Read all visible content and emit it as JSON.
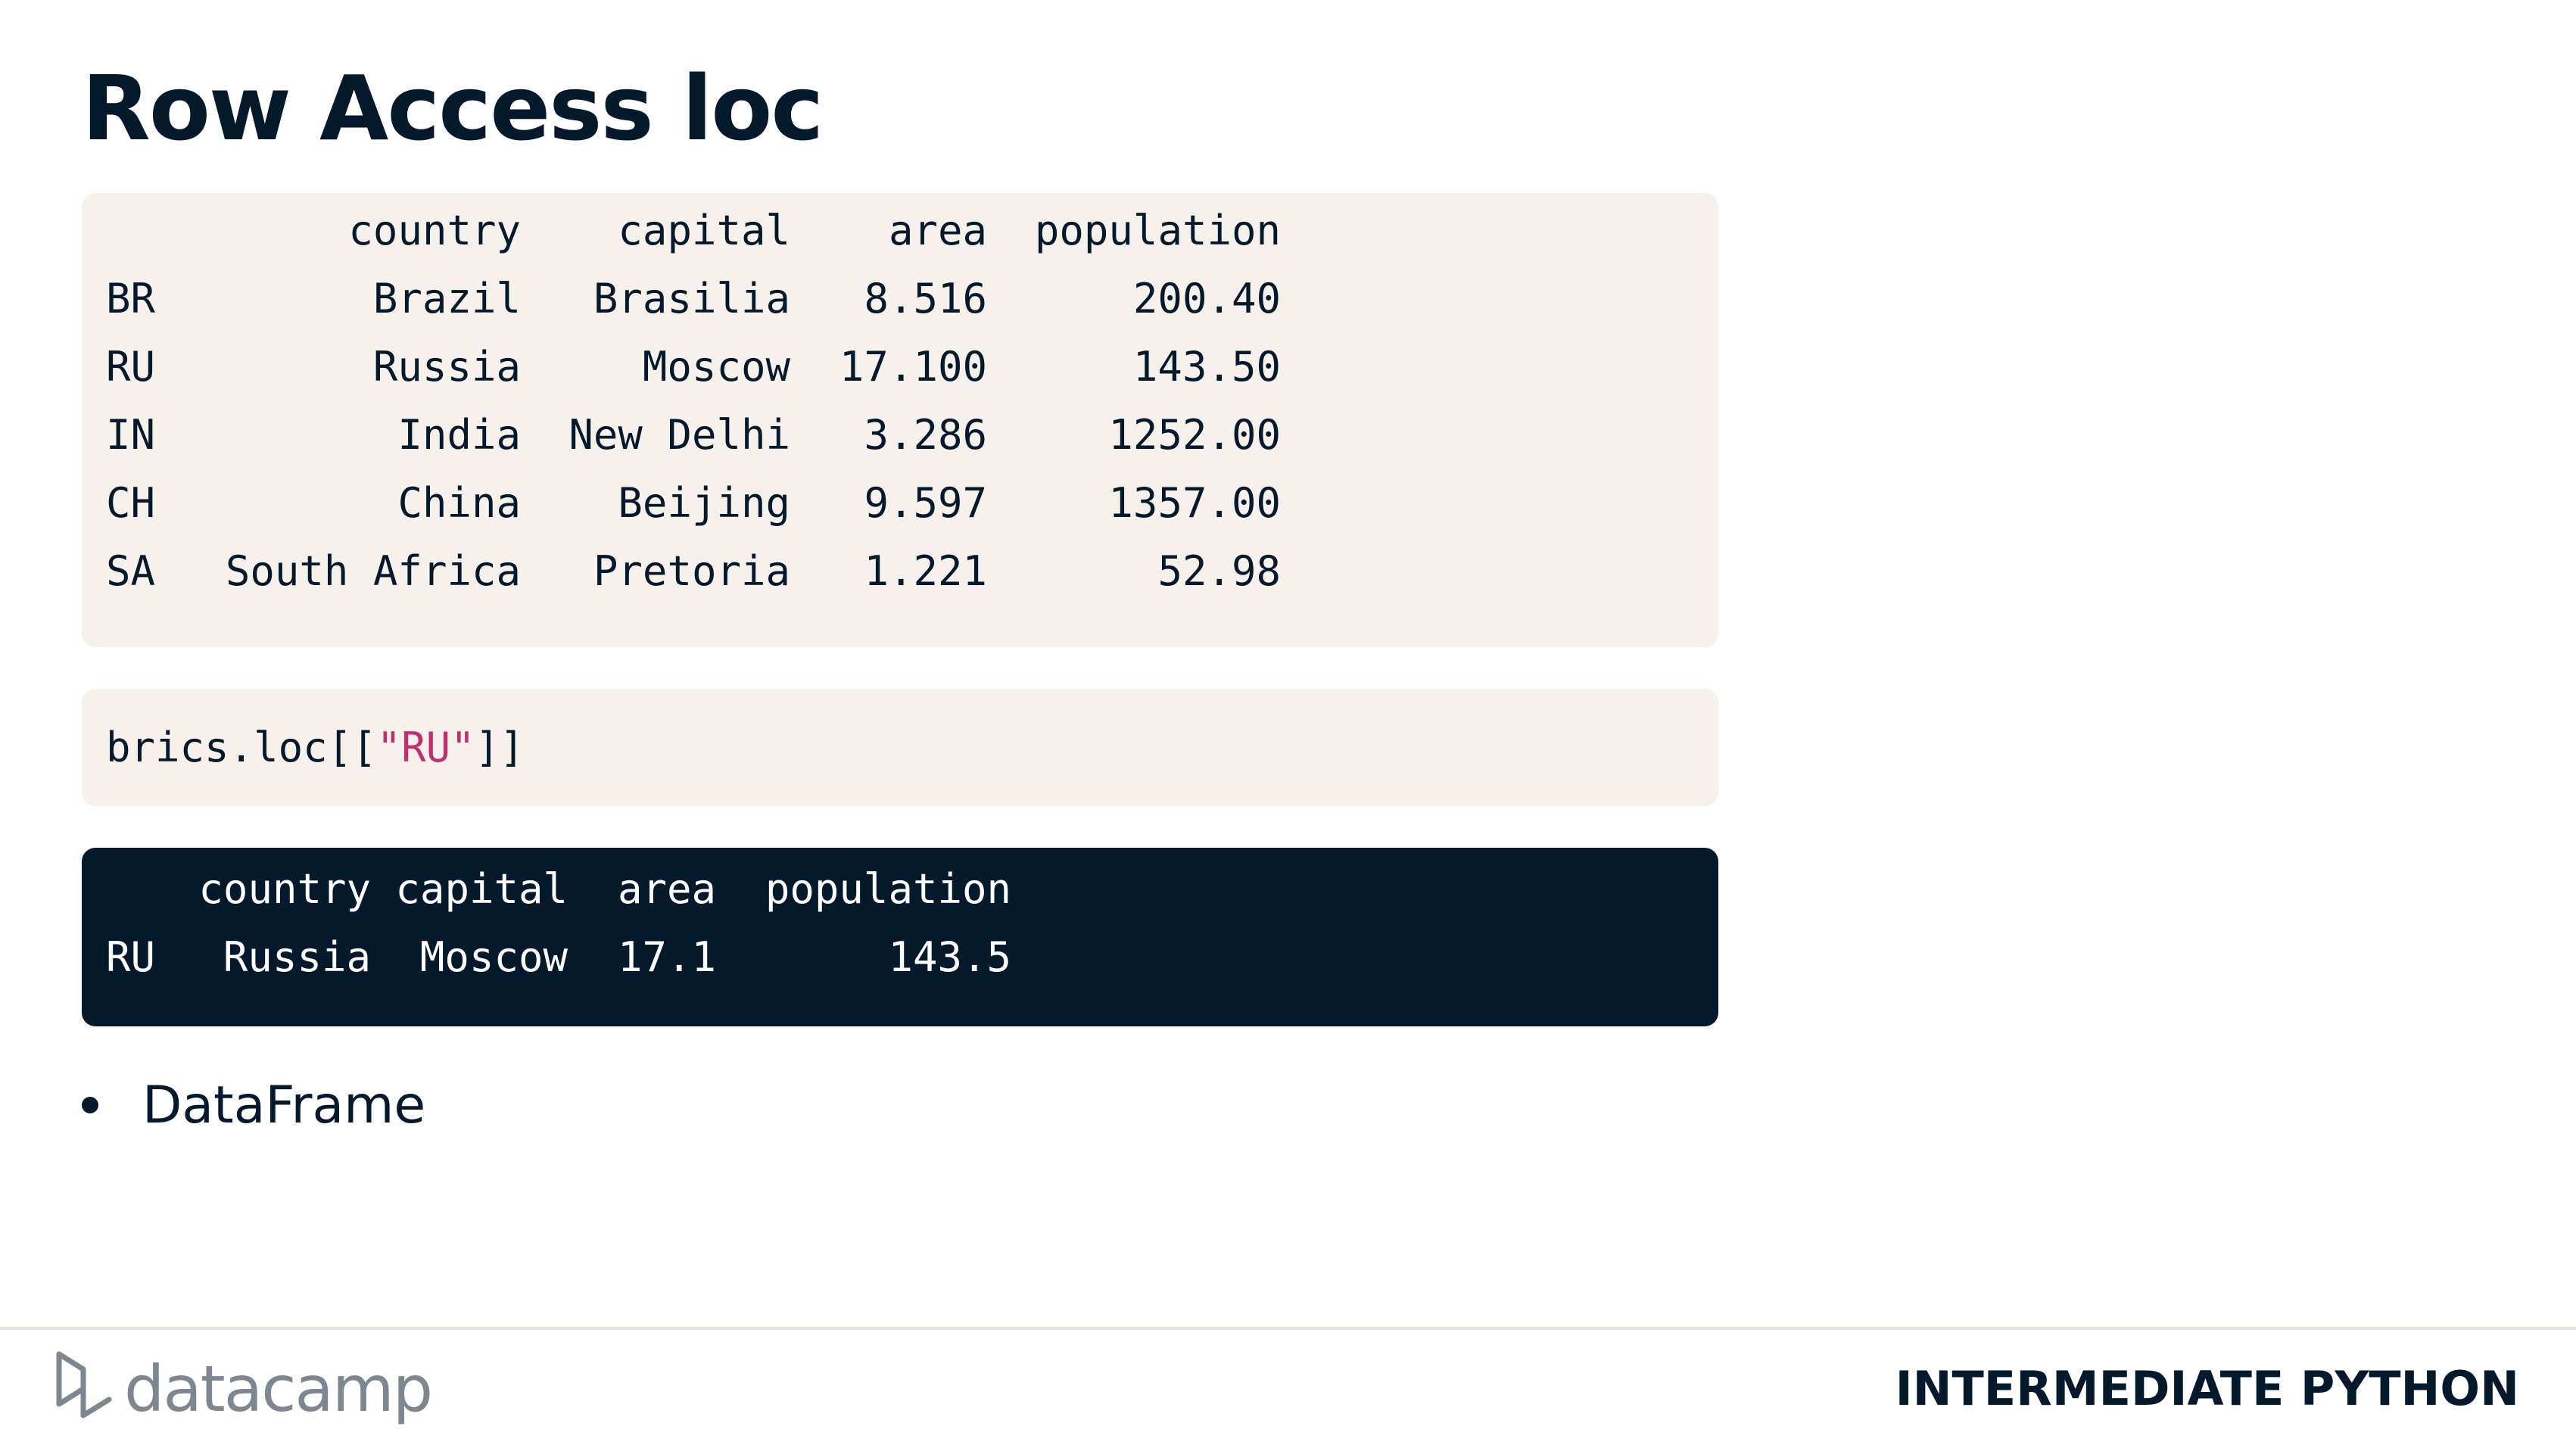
{
  "slide": {
    "title": "Row Access loc"
  },
  "brics_table": {
    "columns": [
      "country",
      "capital",
      "area",
      "population"
    ],
    "rows": [
      {
        "index": "BR",
        "country": "Brazil",
        "capital": "Brasilia",
        "area": "8.516",
        "population": "200.40"
      },
      {
        "index": "RU",
        "country": "Russia",
        "capital": "Moscow",
        "area": "17.100",
        "population": "143.50"
      },
      {
        "index": "IN",
        "country": "India",
        "capital": "New Delhi",
        "area": "3.286",
        "population": "1252.00"
      },
      {
        "index": "CH",
        "country": "China",
        "capital": "Beijing",
        "area": "9.597",
        "population": "1357.00"
      },
      {
        "index": "SA",
        "country": "South Africa",
        "capital": "Pretoria",
        "area": "1.221",
        "population": "52.98"
      }
    ]
  },
  "code": {
    "prefix": "brics.loc[[",
    "string": "\"RU\"",
    "suffix": "]]"
  },
  "output_table": {
    "columns": [
      "country",
      "capital",
      "area",
      "population"
    ],
    "rows": [
      {
        "index": "RU",
        "country": "Russia",
        "capital": "Moscow",
        "area": "17.1",
        "population": "143.5"
      }
    ]
  },
  "bullets": [
    "DataFrame"
  ],
  "footer": {
    "logo_text": "datacamp",
    "course_name": "INTERMEDIATE PYTHON"
  },
  "colors": {
    "navy": "#05192d",
    "code_background": "#f6f2eb",
    "string_token": "#bf3072",
    "logo_gray": "#7d8792"
  },
  "icons": {
    "logo": "datacamp-logo-icon",
    "bullet": "bullet-dot-icon"
  }
}
